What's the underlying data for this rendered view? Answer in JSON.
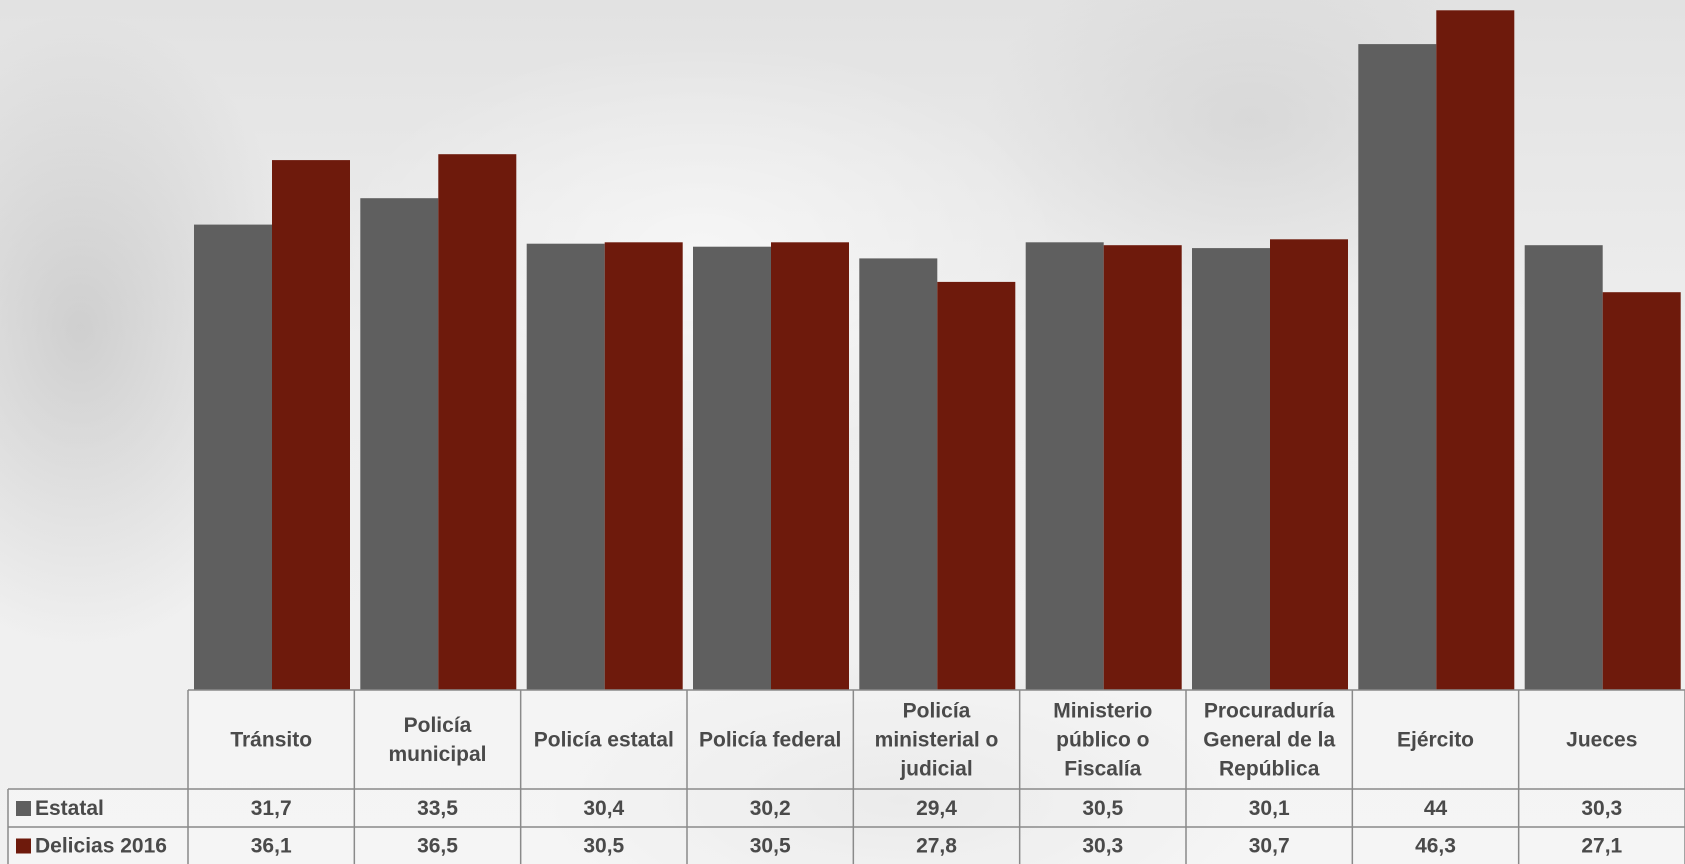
{
  "chart_data": {
    "type": "bar",
    "categories": [
      "Tránsito",
      "Policía municipal",
      "Policía estatal",
      "Policía federal",
      "Policía ministerial o judicial",
      "Ministerio público o Fiscalía",
      "Procuraduría General de la República",
      "Ejército",
      "Jueces"
    ],
    "series": [
      {
        "name": "Estatal",
        "color": "#5f5f5f",
        "values": [
          31.7,
          33.5,
          30.4,
          30.2,
          29.4,
          30.5,
          30.1,
          44,
          30.3
        ],
        "labels": [
          "31,7",
          "33,5",
          "30,4",
          "30,2",
          "29,4",
          "30,5",
          "30,1",
          "44",
          "30,3"
        ]
      },
      {
        "name": "Delicias 2016",
        "color": "#6e1a0c",
        "values": [
          36.1,
          36.5,
          30.5,
          30.5,
          27.8,
          30.3,
          30.7,
          46.3,
          27.1
        ],
        "labels": [
          "36,1",
          "36,5",
          "30,5",
          "30,5",
          "27,8",
          "30,3",
          "30,7",
          "46,3",
          "27,1"
        ]
      }
    ],
    "ylim": [
      0,
      47
    ],
    "grid": false,
    "legend": "data-table"
  }
}
